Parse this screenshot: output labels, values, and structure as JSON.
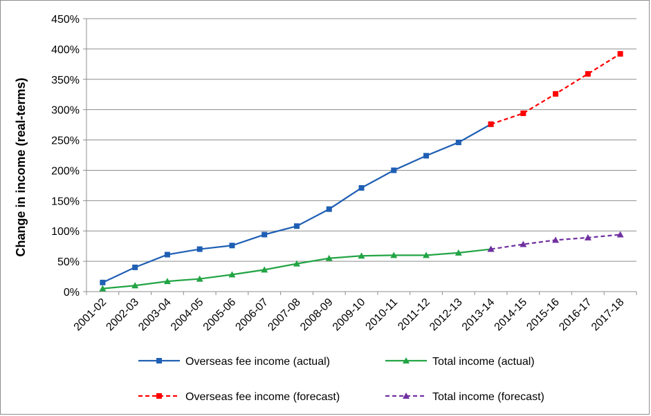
{
  "chart_data": {
    "type": "line",
    "title": "",
    "xlabel": "",
    "ylabel": "Change in income (real-terms)",
    "categories": [
      "2001-02",
      "2002-03",
      "2003-04",
      "2004-05",
      "2005-06",
      "2006-07",
      "2007-08",
      "2008-09",
      "2009-10",
      "2010-11",
      "2011-12",
      "2012-13",
      "2013-14",
      "2014-15",
      "2015-16",
      "2016-17",
      "2017-18"
    ],
    "ylim": [
      0,
      450
    ],
    "yticks": [
      0,
      50,
      100,
      150,
      200,
      250,
      300,
      350,
      400,
      450
    ],
    "ytick_labels": [
      "0%",
      "50%",
      "100%",
      "150%",
      "200%",
      "250%",
      "300%",
      "350%",
      "400%",
      "450%"
    ],
    "grid": true,
    "legend_position": "bottom",
    "series": [
      {
        "name": "Overseas fee income (actual)",
        "color": "#1f5fb4",
        "marker": "square",
        "dashed": false,
        "x": [
          "2001-02",
          "2002-03",
          "2003-04",
          "2004-05",
          "2005-06",
          "2006-07",
          "2007-08",
          "2008-09",
          "2009-10",
          "2010-11",
          "2011-12",
          "2012-13",
          "2013-14"
        ],
        "values": [
          15,
          40,
          61,
          70,
          76,
          94,
          108,
          136,
          171,
          200,
          224,
          246,
          276
        ]
      },
      {
        "name": "Total income (actual)",
        "color": "#22a444",
        "marker": "triangle",
        "dashed": false,
        "x": [
          "2001-02",
          "2002-03",
          "2003-04",
          "2004-05",
          "2005-06",
          "2006-07",
          "2007-08",
          "2008-09",
          "2009-10",
          "2010-11",
          "2011-12",
          "2012-13",
          "2013-14"
        ],
        "values": [
          5,
          10,
          17,
          21,
          28,
          36,
          46,
          55,
          59,
          60,
          60,
          64,
          70
        ]
      },
      {
        "name": "Overseas fee income (forecast)",
        "color": "#ff0000",
        "marker": "square",
        "dashed": true,
        "x": [
          "2013-14",
          "2014-15",
          "2015-16",
          "2016-17",
          "2017-18"
        ],
        "values": [
          276,
          294,
          326,
          359,
          392
        ]
      },
      {
        "name": "Total income (forecast)",
        "color": "#7030a0",
        "marker": "triangle",
        "dashed": true,
        "x": [
          "2013-14",
          "2014-15",
          "2015-16",
          "2016-17",
          "2017-18"
        ],
        "values": [
          70,
          78,
          85,
          89,
          94
        ]
      }
    ]
  }
}
